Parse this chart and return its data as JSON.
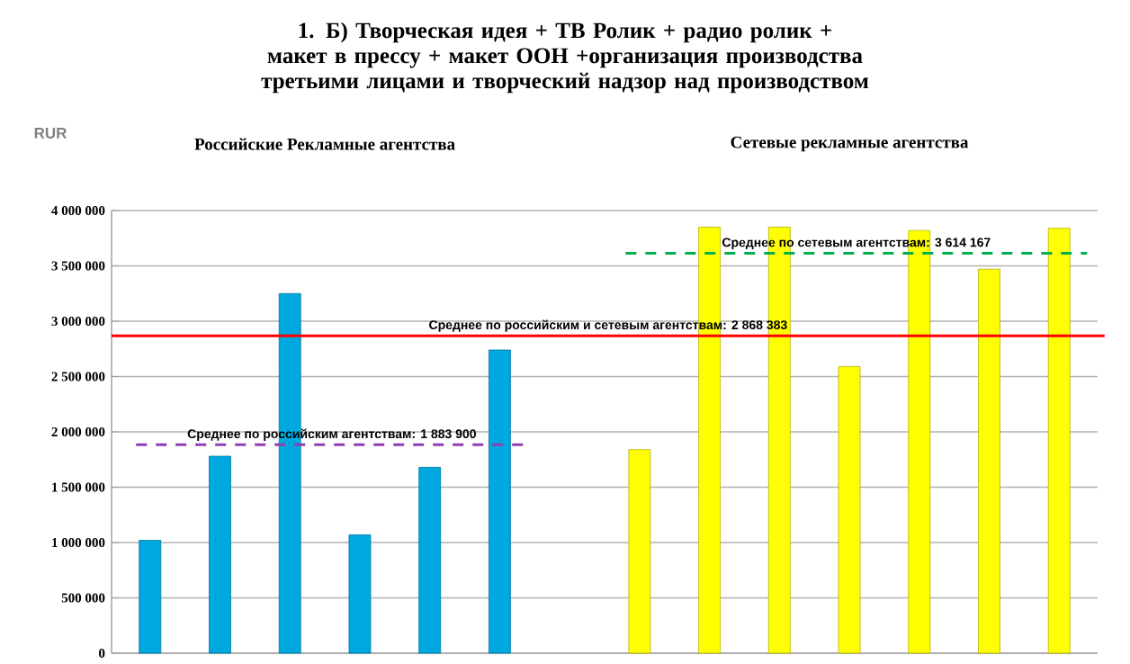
{
  "chart_data": {
    "type": "bar",
    "title": "1. Б) Творческая идея + ТВ Ролик + радио ролик + макет в прессу + макет ООН +организация производства третьими лицами и творческий надзор над производством",
    "ylabel": "RUR",
    "annotations": [
      "Российские Рекламные агентства",
      "Сетевые рекламные агентства"
    ],
    "categories": [
      null,
      null,
      null,
      null,
      null,
      null,
      null,
      null,
      null,
      null,
      null,
      null,
      null,
      null
    ],
    "series": [
      {
        "color": "#00a8e0",
        "values": [
          1020000,
          1780000,
          3250000,
          1070000,
          1680000,
          2740000,
          null,
          null,
          null,
          null,
          null,
          null,
          null,
          null
        ]
      },
      {
        "color": "#ffff00",
        "values": [
          null,
          null,
          null,
          null,
          null,
          null,
          null,
          1840000,
          3850000,
          3850000,
          2590000,
          3820000,
          3470000,
          3840000
        ]
      }
    ],
    "ylim": [
      0,
      4000000
    ],
    "yticks": [
      {
        "value": 0,
        "label": "0"
      },
      {
        "value": 500000,
        "label": "500 000"
      },
      {
        "value": 1000000,
        "label": "1 000 000"
      },
      {
        "value": 1500000,
        "label": "1 500 000"
      },
      {
        "value": 2000000,
        "label": "2 000 000"
      },
      {
        "value": 2500000,
        "label": "2 500 000"
      },
      {
        "value": 3000000,
        "label": "3 000 000"
      },
      {
        "value": 3500000,
        "label": "3 500 000"
      },
      {
        "value": 4000000,
        "label": "4 000 000"
      }
    ],
    "grid": "y",
    "ref_lines": [
      {
        "axis": "y",
        "value": 2868383,
        "label": "Среднее по российским и сетевым агентствам: 2 868 383",
        "color": "#ff0000",
        "line_style": "solid"
      },
      {
        "axis": "y",
        "value": 1883900,
        "label": "Среднее по российским агентствам: 1 883 900",
        "color": "#8e3fb0",
        "line_style": "dashed"
      },
      {
        "axis": "y",
        "value": 3614167,
        "label": "Среднее по сетевым агентствам: 3 614 167",
        "color": "#00b050",
        "line_style": "dashed"
      }
    ]
  }
}
